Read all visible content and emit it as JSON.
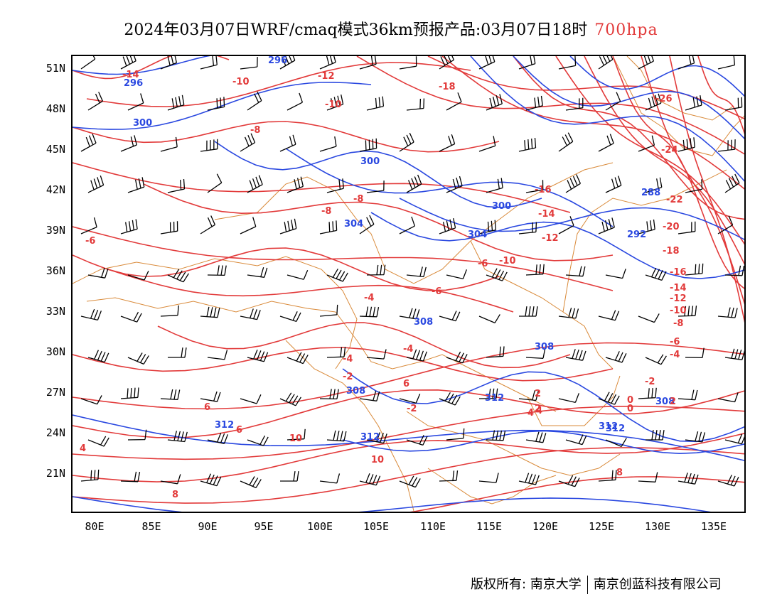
{
  "title": {
    "main": "2024年03月07日WRF/cmaq模式36km预报产品:03月07日18时",
    "level": "700hpa"
  },
  "colors": {
    "geopotential": "#2a48e0",
    "temperature": "#e23a3a",
    "boundaries": "#d98a3a",
    "wind": "#000000",
    "level_text": "#e23a3a"
  },
  "axes": {
    "lat_labels": [
      "51N",
      "48N",
      "45N",
      "42N",
      "39N",
      "36N",
      "33N",
      "30N",
      "27N",
      "24N",
      "21N"
    ],
    "lon_labels": [
      "80E",
      "85E",
      "90E",
      "95E",
      "100E",
      "105E",
      "110E",
      "115E",
      "120E",
      "125E",
      "130E",
      "135E"
    ]
  },
  "contours": {
    "height_labels": [
      "296",
      "296",
      "300",
      "300",
      "300",
      "304",
      "304",
      "292",
      "288",
      "308",
      "308",
      "312",
      "312",
      "312",
      "308",
      "312",
      "308",
      "312"
    ],
    "temp_labels": [
      "-14",
      "-12",
      "-10",
      "-10",
      "-8",
      "-8",
      "-8",
      "-6",
      "-6",
      "-4",
      "-4",
      "-2",
      "-2",
      "-4",
      "-18",
      "-16",
      "-14",
      "-12",
      "-10",
      "-6",
      "-26",
      "-24",
      "-22",
      "-20",
      "-18",
      "-16",
      "-14",
      "-12",
      "-10",
      "-8",
      "-6",
      "-4",
      "-2",
      "0",
      "2",
      "2",
      "4",
      "4",
      "6",
      "8",
      "10",
      "10",
      "2",
      "0",
      "6",
      "8",
      "6",
      "4"
    ]
  },
  "footer": {
    "copyright_left": "版权所有: 南京大学",
    "copyright_right": "南京创蓝科技有限公司"
  }
}
